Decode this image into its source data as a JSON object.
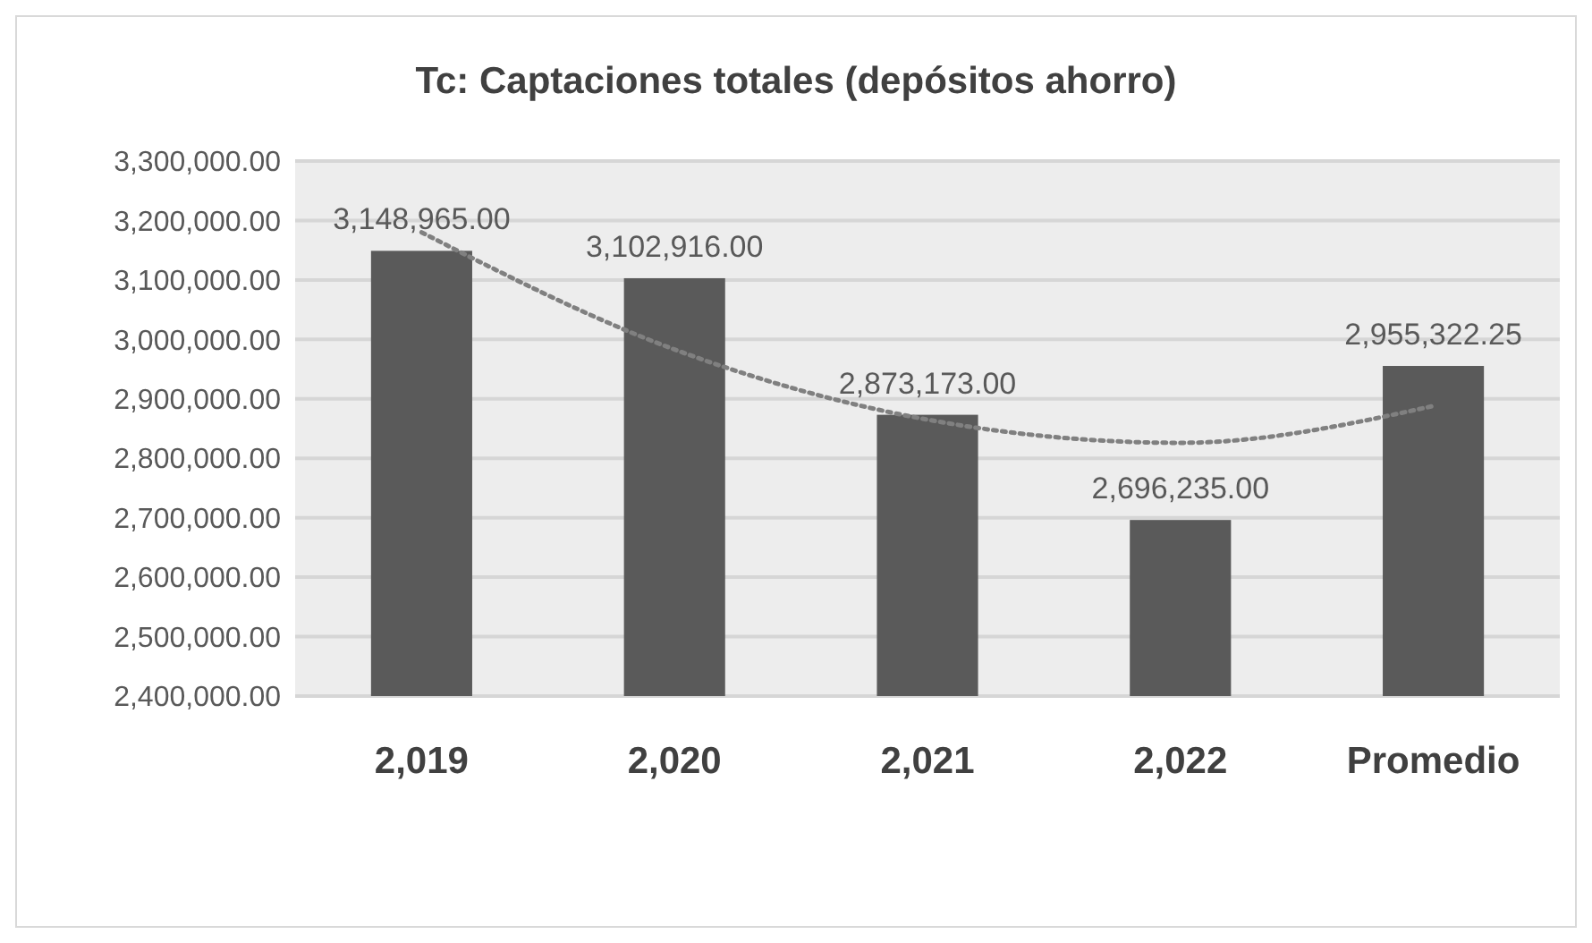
{
  "chart_data": {
    "type": "bar",
    "title": "Tc: Captaciones totales (depósitos ahorro)",
    "categories": [
      "2,019",
      "2,020",
      "2,021",
      "2,022",
      "Promedio"
    ],
    "series": [
      {
        "color": "#5a5a5a",
        "values": [
          3148965,
          3102916,
          2873173,
          2696235,
          2955322.25
        ],
        "value_labels": [
          "3,148,965.00",
          "3,102,916.00",
          "2,873,173.00",
          "2,696,235.00",
          "2,955,322.25"
        ]
      },
      {
        "type": "line",
        "color": "#808080",
        "line_style": "dotted",
        "values": [
          3180000,
          2983000,
          2865000,
          2826000,
          2888000
        ]
      }
    ],
    "ylim": [
      2400000,
      3300000
    ],
    "yticks": [
      {
        "value": 2400000,
        "label": "2,400,000.00"
      },
      {
        "value": 2500000,
        "label": "2,500,000.00"
      },
      {
        "value": 2600000,
        "label": "2,600,000.00"
      },
      {
        "value": 2700000,
        "label": "2,700,000.00"
      },
      {
        "value": 2800000,
        "label": "2,800,000.00"
      },
      {
        "value": 2900000,
        "label": "2,900,000.00"
      },
      {
        "value": 3000000,
        "label": "3,000,000.00"
      },
      {
        "value": 3100000,
        "label": "3,100,000.00"
      },
      {
        "value": 3200000,
        "label": "3,200,000.00"
      },
      {
        "value": 3300000,
        "label": "3,300,000.00"
      }
    ],
    "grid": "y"
  }
}
